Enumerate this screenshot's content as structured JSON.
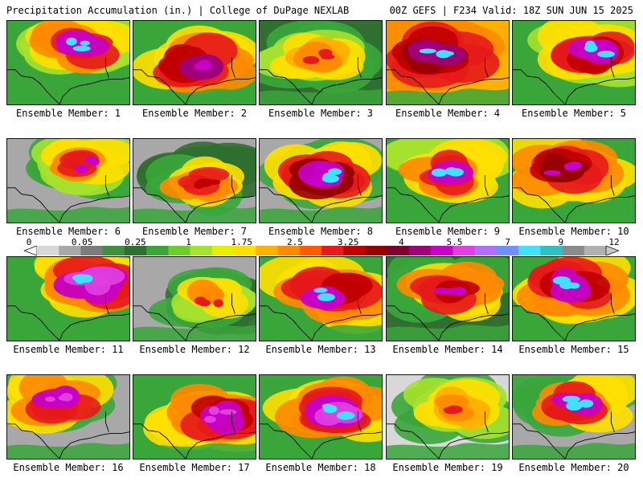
{
  "header": {
    "title_left": "Precipitation Accumulation (in.) | College of DuPage NEXLAB",
    "title_right": "00Z GEFS | F234 Valid: 18Z SUN JUN 15 2025"
  },
  "colorbar": {
    "tick_labels": [
      "0",
      "0.05",
      "0.25",
      "1",
      "1.75",
      "2.5",
      "3.25",
      "4",
      "5.5",
      "7",
      "9",
      "12"
    ],
    "colors": [
      "#d8d8d8",
      "#a8a8a8",
      "#7c7c7c",
      "#3f8f3f",
      "#2f6f2f",
      "#3aa63a",
      "#6ccd2c",
      "#a6e22e",
      "#e8f000",
      "#ffe000",
      "#ffb000",
      "#ff8a00",
      "#ff5a00",
      "#e61a1a",
      "#c00000",
      "#960000",
      "#7a0033",
      "#a0007a",
      "#c800c8",
      "#e040e0",
      "#b070ff",
      "#7090ff",
      "#40e0ff",
      "#30c0c0",
      "#8a8a8a",
      "#b0b0b0"
    ]
  },
  "panels": [
    {
      "label": "Ensemble Member: 1",
      "palette": [
        "#3aa63a",
        "#a6e22e",
        "#ffe000",
        "#ff8a00",
        "#e61a1a",
        "#c800c8"
      ],
      "core": "#40e0ff"
    },
    {
      "label": "Ensemble Member: 2",
      "palette": [
        "#3aa63a",
        "#ffe000",
        "#ff8a00",
        "#e61a1a",
        "#c00000",
        "#a0007a"
      ],
      "core": "#c800c8"
    },
    {
      "label": "Ensemble Member: 3",
      "palette": [
        "#2f6f2f",
        "#3aa63a",
        "#a6e22e",
        "#ffe000",
        "#ffb000",
        "#ff8a00"
      ],
      "core": "#e61a1a"
    },
    {
      "label": "Ensemble Member: 4",
      "palette": [
        "#ffb000",
        "#ff8a00",
        "#e61a1a",
        "#c00000",
        "#960000",
        "#a0007a"
      ],
      "core": "#40e0ff"
    },
    {
      "label": "Ensemble Member: 5",
      "palette": [
        "#3aa63a",
        "#a6e22e",
        "#ffe000",
        "#e61a1a",
        "#c00000",
        "#c800c8"
      ],
      "core": "#40e0ff"
    },
    {
      "label": "Ensemble Member: 6",
      "palette": [
        "#a8a8a8",
        "#3aa63a",
        "#a6e22e",
        "#ffe000",
        "#ff8a00",
        "#e61a1a"
      ],
      "core": "#c800c8"
    },
    {
      "label": "Ensemble Member: 7",
      "palette": [
        "#a8a8a8",
        "#2f6f2f",
        "#3aa63a",
        "#ffe000",
        "#ff8a00",
        "#e61a1a"
      ],
      "core": "#c00000"
    },
    {
      "label": "Ensemble Member: 8",
      "palette": [
        "#a8a8a8",
        "#3aa63a",
        "#ffe000",
        "#e61a1a",
        "#960000",
        "#c800c8"
      ],
      "core": "#40e0ff"
    },
    {
      "label": "Ensemble Member: 9",
      "palette": [
        "#3aa63a",
        "#a6e22e",
        "#ffe000",
        "#ff8a00",
        "#e61a1a",
        "#c800c8"
      ],
      "core": "#40e0ff"
    },
    {
      "label": "Ensemble Member: 10",
      "palette": [
        "#3aa63a",
        "#ffe000",
        "#ff8a00",
        "#e61a1a",
        "#c00000",
        "#960000"
      ],
      "core": "#c800c8"
    },
    {
      "label": "Ensemble Member: 11",
      "palette": [
        "#3aa63a",
        "#ffe000",
        "#ff8a00",
        "#e61a1a",
        "#c800c8",
        "#e040e0"
      ],
      "core": "#40e0ff"
    },
    {
      "label": "Ensemble Member: 12",
      "palette": [
        "#a8a8a8",
        "#2f6f2f",
        "#3aa63a",
        "#a6e22e",
        "#ffe000",
        "#ff8a00"
      ],
      "core": "#e61a1a"
    },
    {
      "label": "Ensemble Member: 13",
      "palette": [
        "#3aa63a",
        "#ffe000",
        "#ff8a00",
        "#e61a1a",
        "#c00000",
        "#c800c8"
      ],
      "core": "#40e0ff"
    },
    {
      "label": "Ensemble Member: 14",
      "palette": [
        "#2f6f2f",
        "#3aa63a",
        "#ffe000",
        "#ff8a00",
        "#e61a1a",
        "#c00000"
      ],
      "core": "#c800c8"
    },
    {
      "label": "Ensemble Member: 15",
      "palette": [
        "#3aa63a",
        "#ffe000",
        "#ff8a00",
        "#e61a1a",
        "#c00000",
        "#c800c8"
      ],
      "core": "#40e0ff"
    },
    {
      "label": "Ensemble Member: 16",
      "palette": [
        "#a8a8a8",
        "#3aa63a",
        "#ffe000",
        "#ff8a00",
        "#e61a1a",
        "#c800c8"
      ],
      "core": "#e040e0"
    },
    {
      "label": "Ensemble Member: 17",
      "palette": [
        "#3aa63a",
        "#ffe000",
        "#ff8a00",
        "#e61a1a",
        "#c00000",
        "#c800c8"
      ],
      "core": "#e040e0"
    },
    {
      "label": "Ensemble Member: 18",
      "palette": [
        "#3aa63a",
        "#ffe000",
        "#ff8a00",
        "#e61a1a",
        "#c800c8",
        "#e040e0"
      ],
      "core": "#40e0ff"
    },
    {
      "label": "Ensemble Member: 19",
      "palette": [
        "#d8d8d8",
        "#3aa63a",
        "#a6e22e",
        "#ffe000",
        "#ffb000",
        "#ff8a00"
      ],
      "core": "#e61a1a"
    },
    {
      "label": "Ensemble Member: 20",
      "palette": [
        "#a8a8a8",
        "#3aa63a",
        "#ffe000",
        "#ff8a00",
        "#e61a1a",
        "#c800c8"
      ],
      "core": "#40e0ff"
    }
  ]
}
